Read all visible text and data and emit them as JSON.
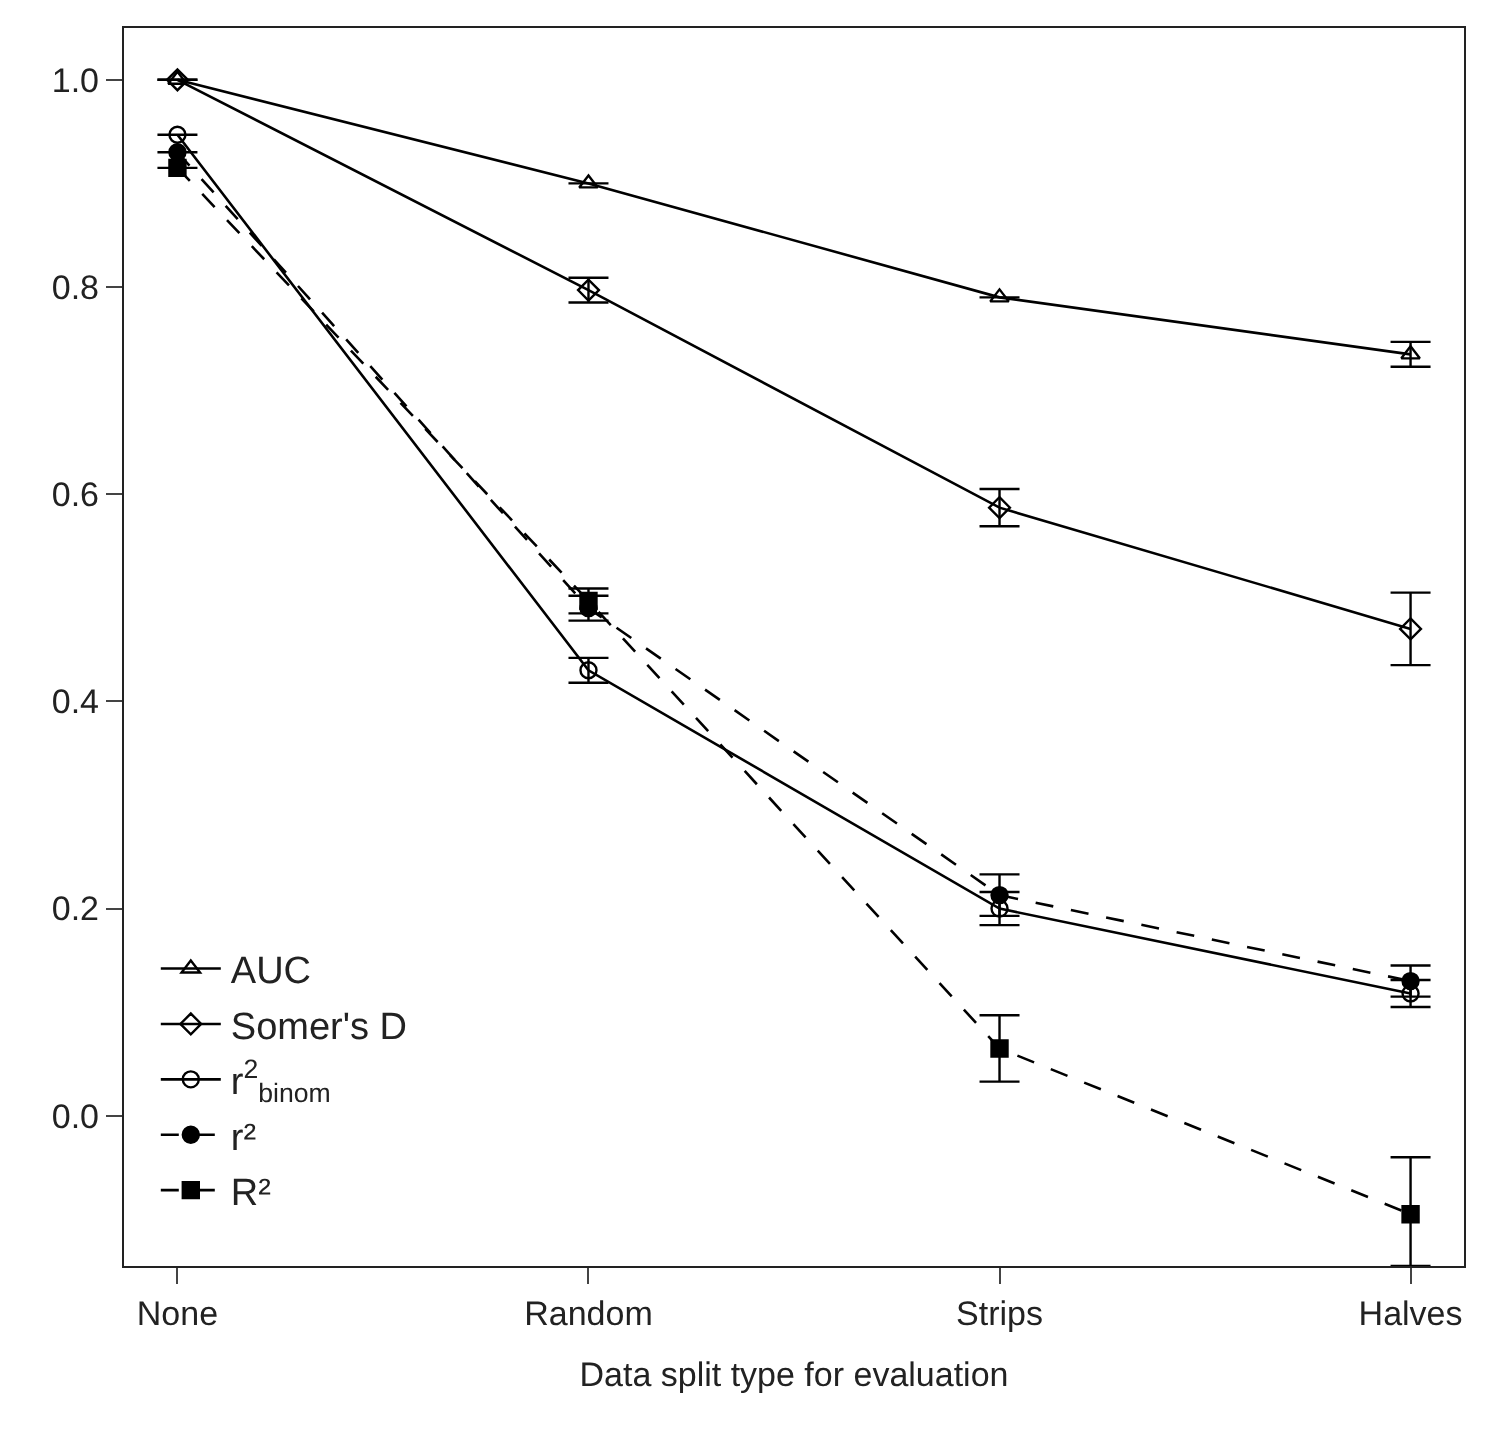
{
  "chart_data": {
    "type": "line",
    "xlabel": "Data split type for evaluation",
    "categories": [
      "None",
      "Random",
      "Strips",
      "Halves"
    ],
    "ylim": [
      -0.145,
      1.05
    ],
    "yticks": [
      {
        "value": 0,
        "label": "0.0"
      },
      0.2,
      0.4,
      0.6,
      0.8,
      {
        "value": 1,
        "label": "1.0"
      }
    ],
    "legend": "bottom left",
    "series": [
      {
        "name": "AUC",
        "color": "#000000",
        "marker": "triangle",
        "line_style": "solid",
        "values": [
          1.0,
          0.9,
          0.79,
          0.735
        ],
        "errors": [
          null,
          null,
          null,
          0.012
        ]
      },
      {
        "name": "Somer's D",
        "color": "#000000",
        "marker": "diamond",
        "line_style": "solid",
        "values": [
          1.0,
          0.797,
          0.587,
          0.47
        ],
        "errors": [
          null,
          0.012,
          0.018,
          0.035
        ]
      },
      {
        "name": "r$^{2}$$_{binom}$",
        "color": "#000000",
        "marker": "circle",
        "line_style": "solid",
        "values": [
          0.947,
          0.43,
          0.2,
          0.118
        ],
        "errors": [
          null,
          0.012,
          0.016,
          0.013
        ]
      },
      {
        "name": "r²",
        "color": "#000000",
        "marker": "circle",
        "line_style": "dashed",
        "values": [
          0.93,
          0.49,
          0.213,
          0.13
        ],
        "errors": [
          null,
          0.012,
          0.02,
          0.015
        ]
      },
      {
        "name": "R²",
        "color": "#000000",
        "marker": "square",
        "line_style": "dashed",
        "values": [
          0.915,
          0.497,
          0.065,
          -0.095
        ],
        "errors": [
          null,
          0.012,
          0.032,
          [
            -0.145,
            -0.04
          ]
        ]
      }
    ]
  }
}
